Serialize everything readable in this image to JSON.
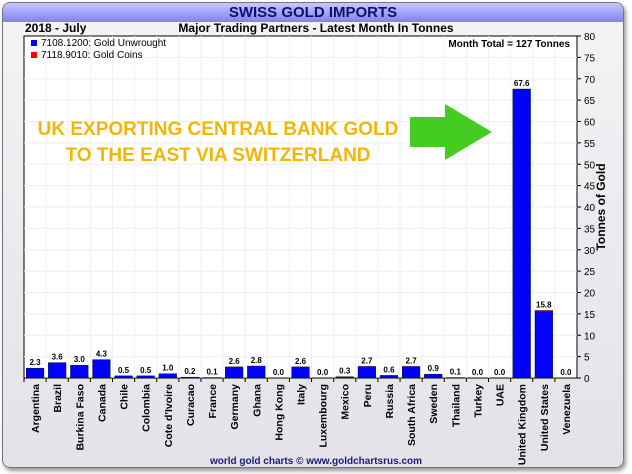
{
  "chart_data": {
    "type": "bar",
    "title": "SWISS GOLD IMPORTS",
    "subtitle": "Major Trading Partners - Latest Month In Tonnes",
    "period": "2018 - July",
    "month_total": "Month Total = 127 Tonnes",
    "ylabel": "Tonnes of Gold",
    "ylim": [
      0,
      80
    ],
    "yticks": [
      0,
      5,
      10,
      15,
      20,
      25,
      30,
      35,
      40,
      45,
      50,
      55,
      60,
      65,
      70,
      75,
      80
    ],
    "grid": true,
    "legend_position": "top-left",
    "categories": [
      "Argentina",
      "Brazil",
      "Burkina Faso",
      "Canada",
      "Chile",
      "Colombia",
      "Cote d'Ivoire",
      "Curacao",
      "France",
      "Germany",
      "Ghana",
      "Hong Kong",
      "Italy",
      "Luxembourg",
      "Mexico",
      "Peru",
      "Russia",
      "South Africa",
      "Sweden",
      "Thailand",
      "Turkey",
      "UAE",
      "United Kingdom",
      "United States",
      "Venezuela"
    ],
    "series": [
      {
        "name": "7108.1200: Gold Unwrought",
        "color": "#0000ff",
        "values": [
          2.3,
          3.6,
          3.0,
          4.3,
          0.5,
          0.5,
          1.0,
          0.2,
          0.1,
          2.6,
          2.8,
          0.0,
          2.6,
          0.0,
          0.3,
          2.7,
          0.6,
          2.7,
          0.9,
          0.1,
          0.0,
          0.0,
          67.6,
          15.5,
          0.0
        ]
      },
      {
        "name": "7118.9010: Gold Coins",
        "color": "#ff0000",
        "values": [
          0,
          0,
          0,
          0,
          0,
          0,
          0,
          0,
          0,
          0,
          0,
          0,
          0,
          0,
          0,
          0,
          0,
          0,
          0,
          0,
          0,
          0,
          0,
          0.3,
          0
        ]
      }
    ],
    "data_labels": [
      "2.3",
      "3.6",
      "3.0",
      "4.3",
      "0.5",
      "0.5",
      "1.0",
      "0.2",
      "0.1",
      "2.6",
      "2.8",
      "0.0",
      "2.6",
      "0.0",
      "0.3",
      "2.7",
      "0.6",
      "2.7",
      "0.9",
      "0.1",
      "0.0",
      "0.0",
      "67.6",
      "15.8",
      "0.0"
    ],
    "annotation": [
      "UK EXPORTING CENTRAL BANK GOLD",
      "TO THE EAST VIA SWITZERLAND"
    ],
    "footer": "world gold charts © www.goldchartsrus.com"
  }
}
